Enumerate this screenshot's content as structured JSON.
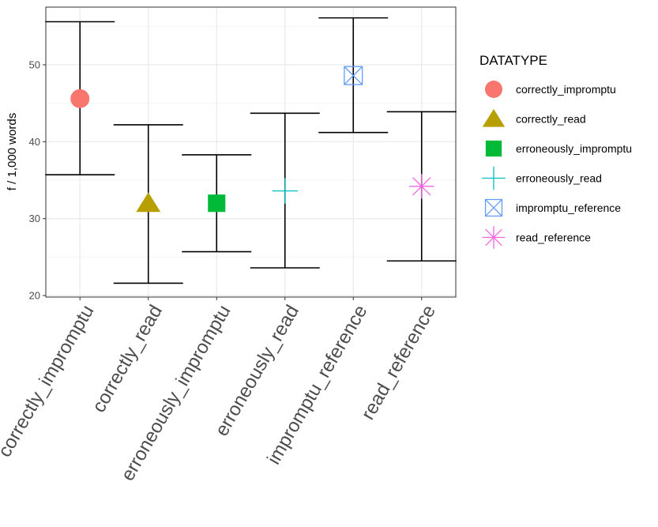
{
  "chart_data": {
    "type": "errorbar",
    "ylabel": "f / 1,000 words",
    "xlabel": "",
    "ylim": [
      19.8,
      57.5
    ],
    "yticks": [
      20,
      30,
      40,
      50
    ],
    "grid": true,
    "legend": {
      "title": "DATATYPE",
      "position": "right"
    },
    "categories": [
      "correctly_impromptu",
      "correctly_read",
      "erroneously_impromptu",
      "erroneously_read",
      "impromptu_reference",
      "read_reference"
    ],
    "series": [
      {
        "name": "correctly_impromptu",
        "x": "correctly_impromptu",
        "mean": 45.6,
        "low": 35.7,
        "high": 55.6,
        "shape": "circle",
        "color": "#F8766D"
      },
      {
        "name": "correctly_read",
        "x": "correctly_read",
        "mean": 32.0,
        "low": 21.6,
        "high": 42.2,
        "shape": "triangle",
        "color": "#B79F00"
      },
      {
        "name": "erroneously_impromptu",
        "x": "erroneously_impromptu",
        "mean": 32.0,
        "low": 25.7,
        "high": 38.3,
        "shape": "square",
        "color": "#00BA38"
      },
      {
        "name": "erroneously_read",
        "x": "erroneously_read",
        "mean": 33.6,
        "low": 23.6,
        "high": 43.7,
        "shape": "plus",
        "color": "#00BFC4"
      },
      {
        "name": "impromptu_reference",
        "x": "impromptu_reference",
        "mean": 48.6,
        "low": 41.2,
        "high": 56.1,
        "shape": "boxx",
        "color": "#619CFF"
      },
      {
        "name": "read_reference",
        "x": "read_reference",
        "mean": 34.2,
        "low": 24.5,
        "high": 43.9,
        "shape": "asterisk",
        "color": "#F564E3"
      }
    ]
  }
}
